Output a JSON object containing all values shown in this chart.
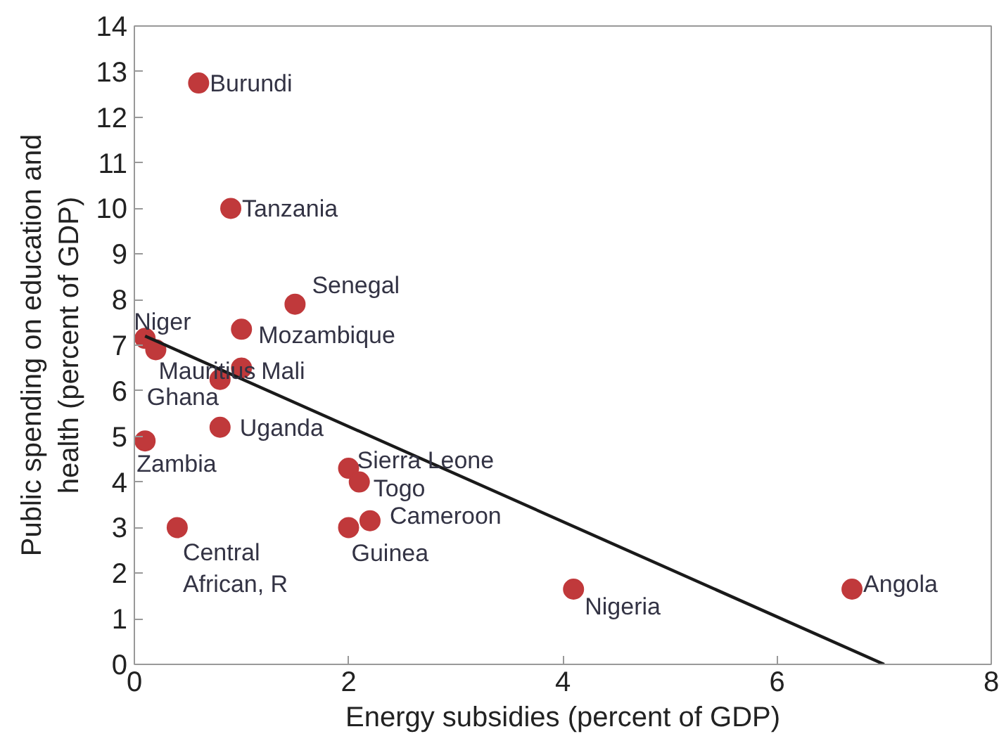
{
  "chart_data": {
    "type": "scatter",
    "xlabel": "Energy subsidies (percent of GDP)",
    "ylabel": "Public spending on education and health (percent of GDP)",
    "xlim": [
      0,
      8
    ],
    "ylim": [
      0,
      14
    ],
    "xticks": [
      0,
      2,
      4,
      6,
      8
    ],
    "yticks": [
      0,
      1,
      2,
      3,
      4,
      5,
      6,
      7,
      8,
      9,
      10,
      11,
      12,
      13,
      14
    ],
    "grid": false,
    "series": [
      {
        "marker": "circle",
        "color": "#c0393b",
        "x": [
          0.6,
          0.9,
          1.5,
          1.0,
          0.1,
          0.2,
          1.0,
          0.8,
          0.8,
          0.1,
          2.0,
          2.1,
          2.2,
          2.0,
          0.4,
          4.1,
          6.7
        ],
        "values": [
          12.75,
          10.0,
          7.9,
          7.35,
          7.15,
          6.9,
          6.5,
          6.25,
          5.2,
          4.9,
          4.3,
          4.0,
          3.15,
          3.0,
          3.0,
          1.65,
          1.65
        ]
      },
      {
        "type": "line",
        "marker": "none",
        "color": "#1a1a1a",
        "x": [
          0.1,
          7.0
        ],
        "values": [
          7.2,
          0
        ]
      }
    ],
    "annotations": [
      {
        "text": "Burundi",
        "x": 0.6,
        "y": 12.75
      },
      {
        "text": "Tanzania",
        "x": 0.9,
        "y": 10.0
      },
      {
        "text": "Senegal",
        "x": 1.5,
        "y": 7.9
      },
      {
        "text": "Mozambique",
        "x": 1.0,
        "y": 7.35
      },
      {
        "text": "Niger",
        "x": 0.1,
        "y": 7.15
      },
      {
        "text": "Mauritius",
        "x": 0.2,
        "y": 6.9
      },
      {
        "text": "Mali",
        "x": 1.0,
        "y": 6.5
      },
      {
        "text": "Ghana",
        "x": 0.8,
        "y": 6.25
      },
      {
        "text": "Uganda",
        "x": 0.8,
        "y": 5.2
      },
      {
        "text": "Zambia",
        "x": 0.1,
        "y": 4.9
      },
      {
        "text": "Sierra Leone",
        "x": 2.0,
        "y": 4.3
      },
      {
        "text": "Togo",
        "x": 2.1,
        "y": 4.0
      },
      {
        "text": "Cameroon",
        "x": 2.2,
        "y": 3.15
      },
      {
        "text": "Guinea",
        "x": 2.0,
        "y": 3.0
      },
      {
        "text": "Central\nAfrican, R",
        "x": 0.4,
        "y": 3.0
      },
      {
        "text": "Nigeria",
        "x": 4.1,
        "y": 1.65
      },
      {
        "text": "Angola",
        "x": 6.7,
        "y": 1.65
      }
    ]
  }
}
